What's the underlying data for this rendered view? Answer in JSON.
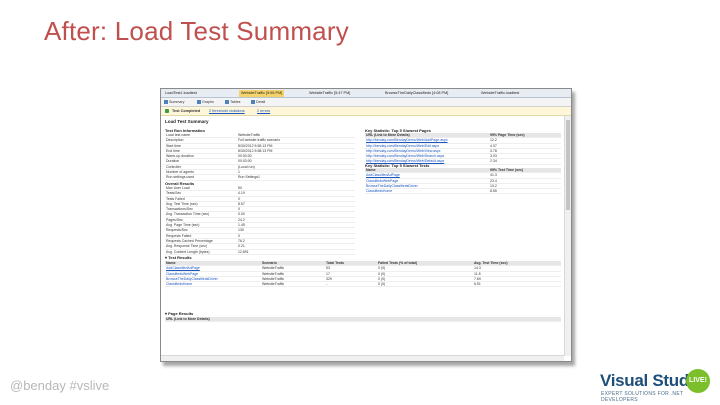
{
  "slide": {
    "title": "After: Load Test Summary",
    "footer": "@benday #vslive"
  },
  "logo": {
    "name": "Visual Studio",
    "badge": "LIVE!",
    "tagline": "EXPERT SOLUTIONS FOR .NET DEVELOPERS"
  },
  "app": {
    "tabs": [
      {
        "label": "LoadTest1.loadtest",
        "active": false
      },
      {
        "label": "WebsiteTraffic [5:55 PM]",
        "active": true
      },
      {
        "label": "WebsiteTraffic [5:47 PM]",
        "active": false
      },
      {
        "label": "BrowseTheDailyClassifieds [4:08 PM]",
        "active": false
      },
      {
        "label": "WebsiteTraffic.loadtest",
        "active": false
      }
    ],
    "toolbar": [
      {
        "label": "Summary",
        "icon": "summary-icon"
      },
      {
        "label": "Graphs",
        "icon": "graphs-icon"
      },
      {
        "label": "Tables",
        "icon": "tables-icon"
      },
      {
        "label": "Detail",
        "icon": "detail-icon"
      }
    ],
    "status": {
      "text": "Test Completed",
      "link1": "2 threshold violations",
      "link2": "2 errors"
    },
    "report_title": "Load Test Summary",
    "test_run_info": {
      "heading": "Test Run Information",
      "rows": [
        [
          "Load test name",
          "WebsiteTraffic"
        ],
        [
          "Description",
          "Full website traffic scenario"
        ],
        [
          "Start time",
          "8/30/2012 5:55:13 PM"
        ],
        [
          "End time",
          "8/30/2012 5:58:13 PM"
        ],
        [
          "Warm-up duration",
          "00:00:00"
        ],
        [
          "Duration",
          "00:03:00"
        ],
        [
          "Controller",
          "(Local run)"
        ],
        [
          "Number of agents",
          "1"
        ],
        [
          "Run settings used",
          "Run Settings1"
        ]
      ]
    },
    "overall_results": {
      "heading": "Overall Results",
      "rows": [
        [
          "Max User Load",
          "50"
        ],
        [
          "Tests/Sec",
          "4.19"
        ],
        [
          "Tests Failed",
          "0"
        ],
        [
          "Avg. Test Time (sec)",
          "8.57"
        ],
        [
          "Transactions/Sec",
          "0"
        ],
        [
          "Avg. Transaction Time (sec)",
          "0.00"
        ],
        [
          "Pages/Sec",
          "24.2"
        ],
        [
          "Avg. Page Time (sec)",
          "1.45"
        ],
        [
          "Requests/Sec",
          "130"
        ],
        [
          "Requests Failed",
          "0"
        ],
        [
          "Requests Cached Percentage",
          "76.2"
        ],
        [
          "Avg. Response Time (sec)",
          "0.21"
        ],
        [
          "Avg. Content Length (bytes)",
          "12,891"
        ]
      ]
    },
    "slowest_pages": {
      "heading": "Key Statistic: Top 5 Slowest Pages",
      "columns": [
        "URL (Link to More Details)",
        "95% Page Time (sec)"
      ],
      "rows": [
        [
          "http://benday.com/BendayDemo/Web/AddPage.aspx",
          "12.2"
        ],
        [
          "http://benday.com/BendayDemo/Web/Edit.aspx",
          "4.37"
        ],
        [
          "http://benday.com/BendayDemo/Web/View.aspx",
          "3.78"
        ],
        [
          "http://benday.com/BendayDemo/Web/Search.aspx",
          "3.03"
        ],
        [
          "http://benday.com/BendayDemo/Web/Default.aspx",
          "2.34"
        ]
      ]
    },
    "slowest_tests": {
      "heading": "Key Statistic: Top 5 Slowest Tests",
      "columns": [
        "Name",
        "95% Test Time (sec)"
      ],
      "rows": [
        [
          "AddClassifiedAdPage",
          "41.3"
        ],
        [
          "ClassifiedsWebPage",
          "23.4"
        ],
        [
          "BrowseTheDailyClassifiedsDriver",
          "10.2"
        ],
        [
          "ClassifiedsHome",
          "8.55"
        ]
      ]
    },
    "test_results": {
      "heading": "Test Results",
      "columns": [
        "Name",
        "Scenario",
        "Total Tests",
        "Failed Tests (% of total)",
        "Avg. Test Time (sec)"
      ],
      "rows": [
        [
          "AddClassifiedAdPage",
          "WebsiteTraffic",
          "53",
          "0 (0)",
          "14.3"
        ],
        [
          "ClassifiedsWebPage",
          "WebsiteTraffic",
          "17",
          "0 (0)",
          "11.8"
        ],
        [
          "BrowseTheDailyClassifiedsDriver",
          "WebsiteTraffic",
          "329",
          "0 (0)",
          "7.69"
        ],
        [
          "ClassifiedsHome",
          "WebsiteTraffic",
          "..",
          "0 (0)",
          "6.51"
        ]
      ]
    },
    "page_results": {
      "heading": "Page Results",
      "first_row": "URL (Link to More Details)"
    }
  }
}
